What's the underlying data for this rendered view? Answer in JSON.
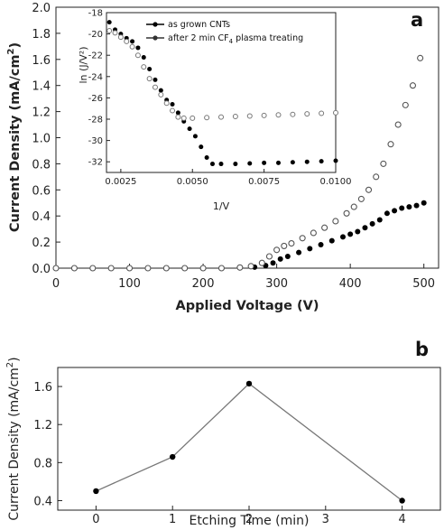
{
  "chart_data": [
    {
      "type": "scatter",
      "panel_label": "a",
      "xlabel": "Applied Voltage (V)",
      "ylabel_text": "Current Density (mA/cm",
      "ylabel_sup": "2",
      "ylabel_end": ")",
      "xlim": [
        0,
        520
      ],
      "ylim": [
        0,
        2.0
      ],
      "x_ticks": [
        0,
        100,
        200,
        300,
        400,
        500
      ],
      "y_ticks": [
        "0.0",
        "0.2",
        "0.4",
        "0.6",
        "0.8",
        "1.0",
        "1.2",
        "1.4",
        "1.6",
        "1.8",
        "2.0"
      ],
      "grid": false,
      "series": [
        {
          "name": "as grown CNTs",
          "marker": "filled-circle",
          "color": "#000000",
          "x": [
            0,
            25,
            50,
            75,
            100,
            125,
            150,
            175,
            200,
            225,
            250,
            270,
            285,
            295,
            305,
            315,
            330,
            345,
            360,
            375,
            390,
            400,
            410,
            420,
            430,
            440,
            450,
            460,
            470,
            480,
            490,
            500
          ],
          "y": [
            0,
            0,
            0,
            0,
            0,
            0,
            0,
            0,
            0,
            0,
            0.003,
            0.008,
            0.02,
            0.04,
            0.07,
            0.09,
            0.12,
            0.15,
            0.18,
            0.21,
            0.24,
            0.26,
            0.28,
            0.31,
            0.34,
            0.37,
            0.42,
            0.44,
            0.46,
            0.47,
            0.48,
            0.5
          ]
        },
        {
          "name": "after 2 min CF4 plasma treating",
          "marker": "open-circle",
          "color": "#555555",
          "x": [
            0,
            25,
            50,
            75,
            100,
            125,
            150,
            175,
            200,
            225,
            250,
            265,
            280,
            290,
            300,
            310,
            320,
            335,
            350,
            365,
            380,
            395,
            405,
            415,
            425,
            435,
            445,
            455,
            465,
            475,
            485,
            495
          ],
          "y": [
            0,
            0,
            0,
            0,
            0,
            0,
            0,
            0,
            0,
            0,
            0.005,
            0.015,
            0.04,
            0.09,
            0.14,
            0.17,
            0.19,
            0.23,
            0.27,
            0.31,
            0.36,
            0.42,
            0.47,
            0.53,
            0.6,
            0.7,
            0.8,
            0.95,
            1.1,
            1.25,
            1.4,
            1.61
          ]
        }
      ],
      "inset": {
        "type": "scatter",
        "xlabel": "1/V",
        "ylabel": "ln (J/V²)",
        "xlim": [
          0.002,
          0.01
        ],
        "ylim": [
          -33,
          -18
        ],
        "x_ticks": [
          "0.0025",
          "0.0050",
          "0.0075",
          "0.0100"
        ],
        "x_tick_values": [
          0.0025,
          0.005,
          0.0075,
          0.01
        ],
        "y_ticks": [
          "-18",
          "-20",
          "-22",
          "-24",
          "-26",
          "-28",
          "-30",
          "-32"
        ],
        "y_tick_values": [
          -18,
          -20,
          -22,
          -24,
          -26,
          -28,
          -30,
          -32
        ],
        "legend_position": "top-left",
        "legend": [
          {
            "text": "as grown CNTs",
            "sub": ""
          },
          {
            "text": "after 2 min CF",
            "sub": "4",
            "text_end": " plasma treating"
          }
        ],
        "series": [
          {
            "name": "as grown CNTs",
            "marker": "filled-circle",
            "color": "#000000",
            "x": [
              0.0021,
              0.0023,
              0.0025,
              0.0027,
              0.0029,
              0.0031,
              0.0033,
              0.0035,
              0.0037,
              0.0039,
              0.0041,
              0.0043,
              0.0045,
              0.0047,
              0.0049,
              0.0051,
              0.0053,
              0.0055,
              0.0057,
              0.006,
              0.0065,
              0.007,
              0.0075,
              0.008,
              0.0085,
              0.009,
              0.0095,
              0.01
            ],
            "y": [
              -18.9,
              -19.6,
              -20.0,
              -20.4,
              -20.7,
              -21.3,
              -22.2,
              -23.3,
              -24.3,
              -25.3,
              -26.2,
              -26.6,
              -27.4,
              -28.2,
              -28.9,
              -29.6,
              -30.6,
              -31.6,
              -32.2,
              -32.2,
              -32.2,
              -32.15,
              -32.1,
              -32.1,
              -32.05,
              -32.0,
              -31.95,
              -31.9
            ]
          },
          {
            "name": "after 2 min CF4 plasma treating",
            "marker": "open-circle",
            "color": "#777777",
            "x": [
              0.0021,
              0.0023,
              0.0025,
              0.0027,
              0.0029,
              0.0031,
              0.0033,
              0.0035,
              0.0037,
              0.0039,
              0.0041,
              0.0043,
              0.0045,
              0.0047,
              0.005,
              0.0055,
              0.006,
              0.0065,
              0.007,
              0.0075,
              0.008,
              0.0085,
              0.009,
              0.0095,
              0.01
            ],
            "y": [
              -19.7,
              -19.9,
              -20.3,
              -20.7,
              -21.2,
              -22.0,
              -23.1,
              -24.2,
              -25.0,
              -25.7,
              -26.5,
              -27.2,
              -27.8,
              -27.9,
              -27.9,
              -27.85,
              -27.8,
              -27.75,
              -27.7,
              -27.65,
              -27.6,
              -27.55,
              -27.5,
              -27.45,
              -27.4
            ]
          }
        ]
      }
    },
    {
      "type": "line",
      "panel_label": "b",
      "xlabel": "Etching Time (min)",
      "ylabel_text": "Current Density (mA/cm",
      "ylabel_sup": "2",
      "ylabel_end": ")",
      "xlim": [
        -0.5,
        4.5
      ],
      "ylim": [
        0.3,
        1.8
      ],
      "x_ticks": [
        "0",
        "1",
        "2",
        "3",
        "4"
      ],
      "x_tick_values": [
        0,
        1,
        2,
        3,
        4
      ],
      "y_ticks": [
        "0.4",
        "0.8",
        "1.2",
        "1.6"
      ],
      "y_tick_values": [
        0.4,
        0.8,
        1.2,
        1.6
      ],
      "grid": false,
      "series": [
        {
          "marker": "filled-circle",
          "color": "#000000",
          "line_color": "#777777",
          "x": [
            0,
            1,
            2,
            4
          ],
          "y": [
            0.5,
            0.86,
            1.63,
            0.4
          ]
        }
      ]
    }
  ]
}
